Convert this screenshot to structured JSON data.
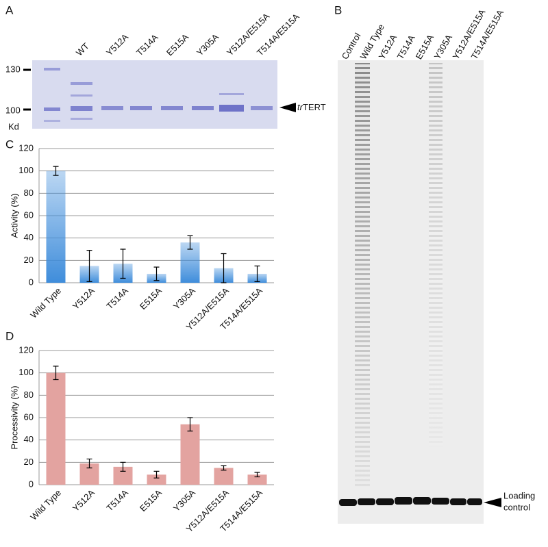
{
  "chart_data": [
    {
      "type": "bar",
      "panel": "C",
      "ylabel": "Activity (%)",
      "categories": [
        "Wild Type",
        "Y512A",
        "T514A",
        "E515A",
        "Y305A",
        "Y512A/E515A",
        "T514A/E515A"
      ],
      "values": [
        100,
        15,
        17,
        8,
        36,
        13,
        8
      ],
      "errors": [
        4,
        14,
        13,
        6,
        6,
        13,
        7
      ],
      "color": "#3f8ddb",
      "ylim": [
        0,
        120
      ],
      "yticks": [
        0,
        20,
        40,
        60,
        80,
        100,
        120
      ],
      "grid": true
    },
    {
      "type": "bar",
      "panel": "D",
      "ylabel": "Processivity (%)",
      "categories": [
        "Wild Type",
        "Y512A",
        "T514A",
        "E515A",
        "Y305A",
        "Y512A/E515A",
        "T514A/E515A"
      ],
      "values": [
        100,
        19,
        16,
        9,
        54,
        15,
        9
      ],
      "errors": [
        6,
        4,
        4,
        3,
        6,
        2,
        2
      ],
      "color": "#e3a3a0",
      "ylim": [
        0,
        120
      ],
      "yticks": [
        0,
        20,
        40,
        60,
        80,
        100,
        120
      ],
      "grid": true
    }
  ],
  "gel_a": {
    "panel": "A",
    "lanes": [
      "WT",
      "Y512A",
      "T514A",
      "E515A",
      "Y305A",
      "Y512A/E515A",
      "T514A/E515A"
    ],
    "markers": [
      130,
      100
    ],
    "unit": "Kd",
    "annotation_prefix": "tr",
    "annotation": "TERT"
  },
  "gel_b": {
    "panel": "B",
    "lanes": [
      "Control",
      "Wild  Type",
      "Y512A",
      "T514A",
      "E515A",
      "Y305A",
      "Y512A/E515A",
      "T514A/E515A"
    ],
    "annotation": [
      "Loading",
      "control"
    ]
  }
}
